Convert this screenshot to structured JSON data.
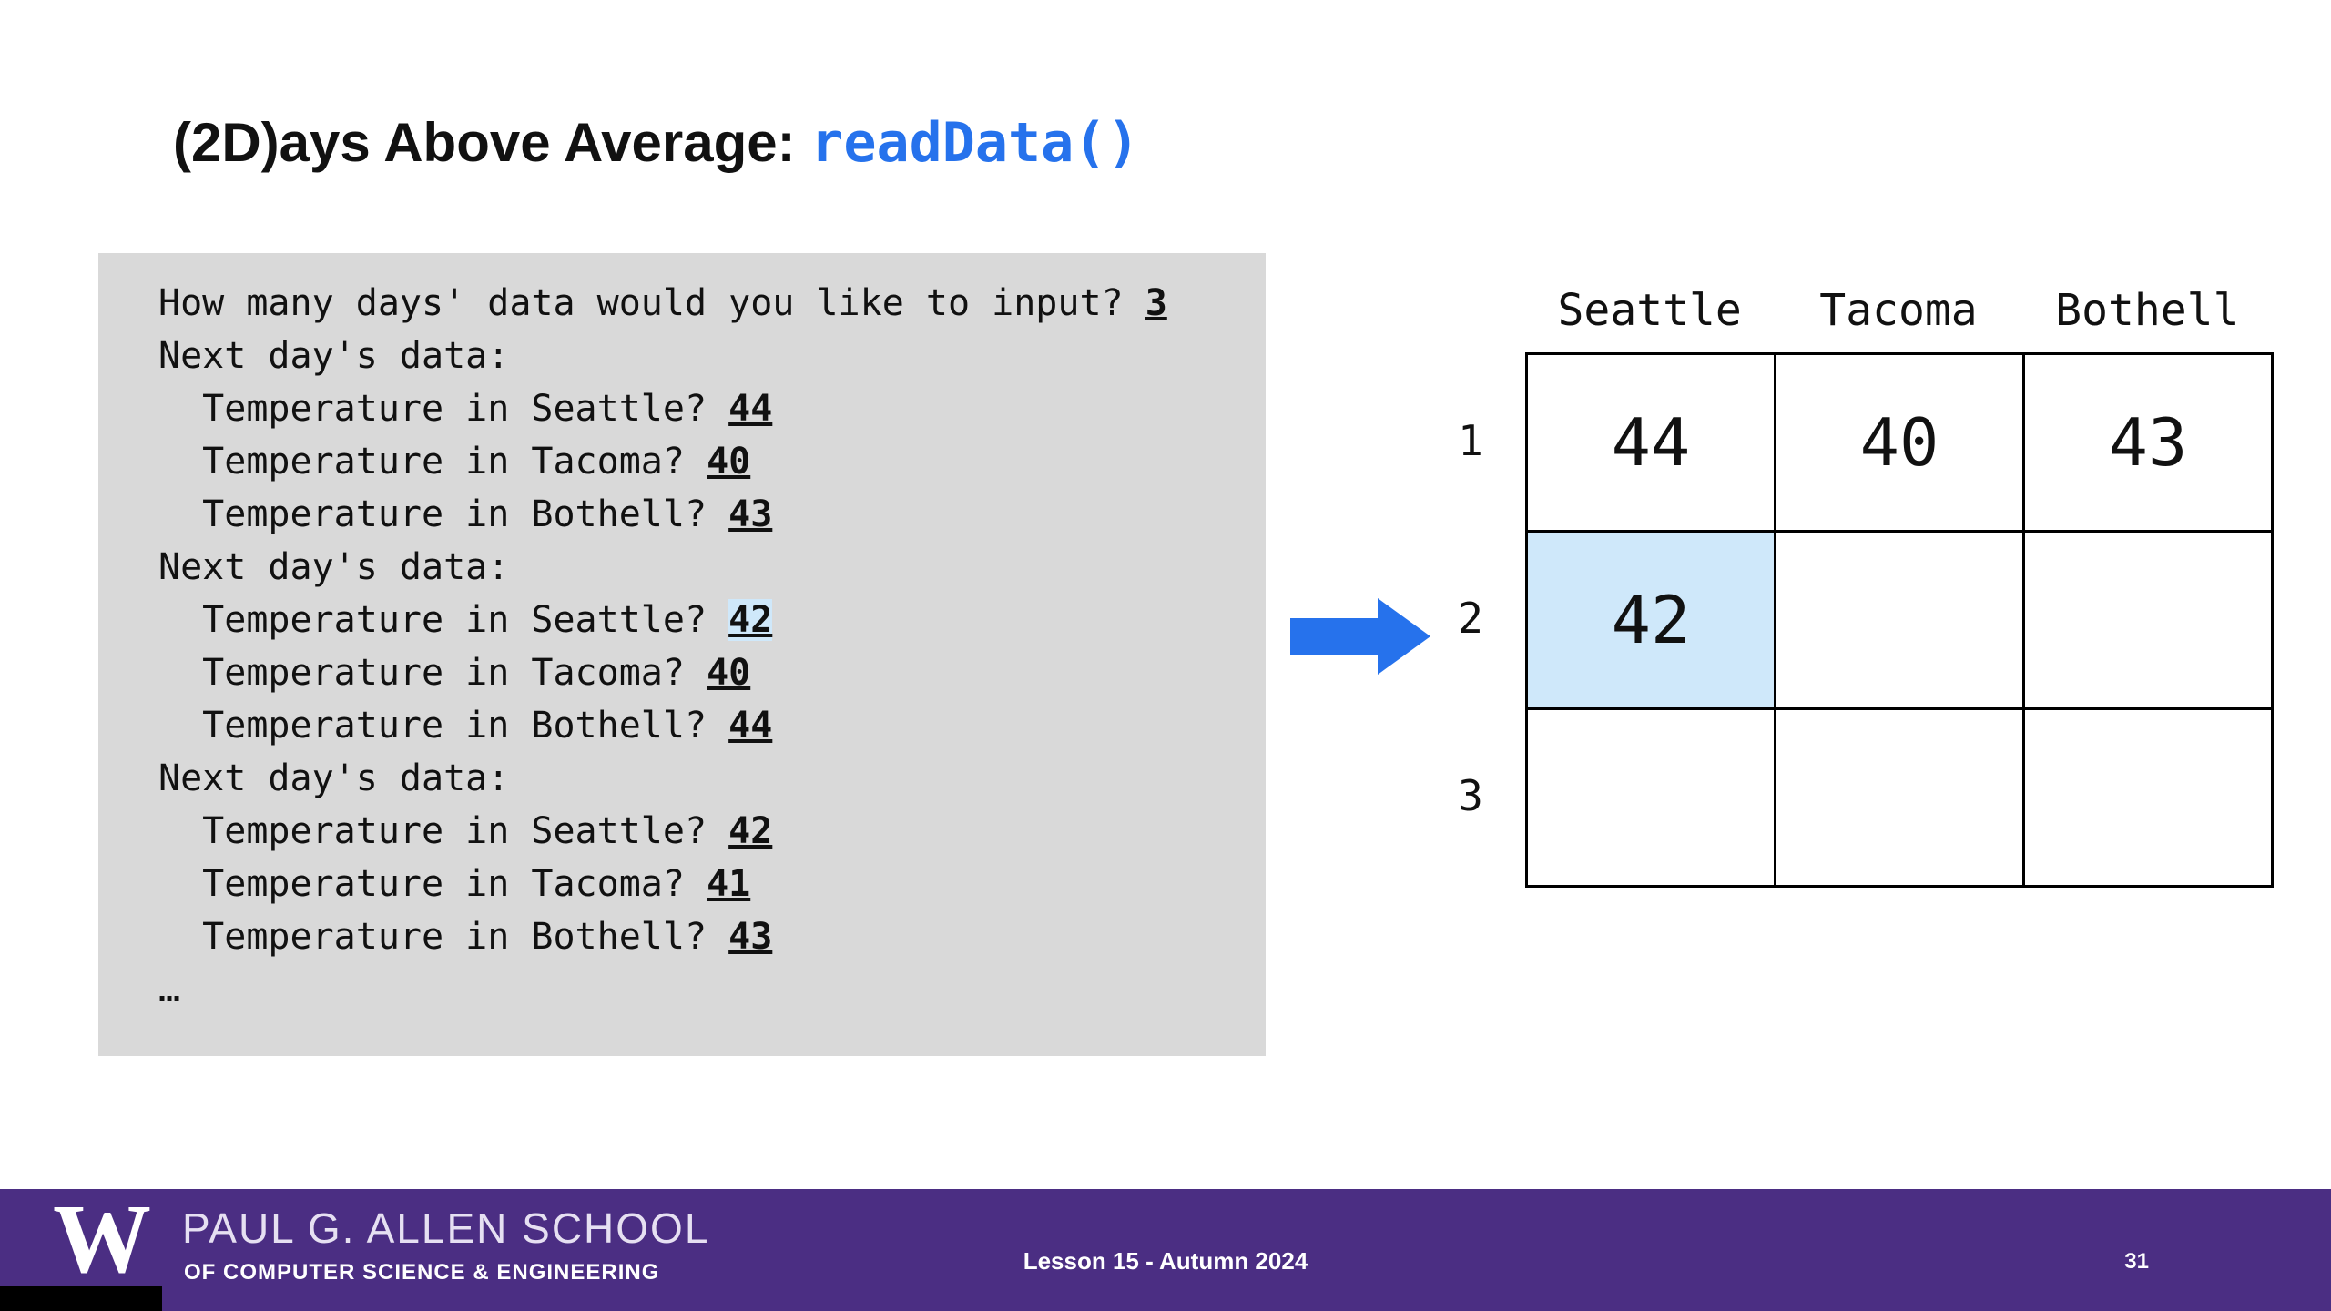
{
  "title": {
    "plain": "(2D)ays Above Average: ",
    "code": "readData()"
  },
  "console": {
    "lines": [
      {
        "text": "How many days' data would you like to input? ",
        "input": "3",
        "highlight": false
      },
      {
        "text": "Next day's data:",
        "input": "",
        "highlight": false
      },
      {
        "text": "  Temperature in Seattle? ",
        "input": "44",
        "highlight": false
      },
      {
        "text": "  Temperature in Tacoma? ",
        "input": "40",
        "highlight": false
      },
      {
        "text": "  Temperature in Bothell? ",
        "input": "43",
        "highlight": false
      },
      {
        "text": "Next day's data:",
        "input": "",
        "highlight": false
      },
      {
        "text": "  Temperature in Seattle? ",
        "input": "42",
        "highlight": true
      },
      {
        "text": "  Temperature in Tacoma? ",
        "input": "40",
        "highlight": false
      },
      {
        "text": "  Temperature in Bothell? ",
        "input": "44",
        "highlight": false
      },
      {
        "text": "Next day's data:",
        "input": "",
        "highlight": false
      },
      {
        "text": "  Temperature in Seattle? ",
        "input": "42",
        "highlight": false
      },
      {
        "text": "  Temperature in Tacoma? ",
        "input": "41",
        "highlight": false
      },
      {
        "text": "  Temperature in Bothell? ",
        "input": "43",
        "highlight": false
      },
      {
        "text": "…",
        "input": "",
        "highlight": false
      }
    ]
  },
  "table": {
    "columns": [
      "Seattle",
      "Tacoma",
      "Bothell"
    ],
    "row_labels": [
      "1",
      "2",
      "3"
    ],
    "cells": [
      [
        "44",
        "40",
        "43"
      ],
      [
        "42",
        "",
        ""
      ],
      [
        "",
        "",
        ""
      ]
    ],
    "highlighted_cell": {
      "row_label": "2",
      "column": "Seattle",
      "value": "42"
    }
  },
  "footer": {
    "logo_letter": "W",
    "school_name": "PAUL G. ALLEN SCHOOL",
    "school_subtitle": "OF COMPUTER SCIENCE & ENGINEERING",
    "lesson_label": "Lesson 15 - Autumn 2024",
    "slide_number": "31"
  },
  "colors": {
    "accent_blue": "#2672EC",
    "console_bg": "#D9D9D9",
    "cell_highlight": "#CFE8FA",
    "footer_purple": "#4B2E83"
  }
}
